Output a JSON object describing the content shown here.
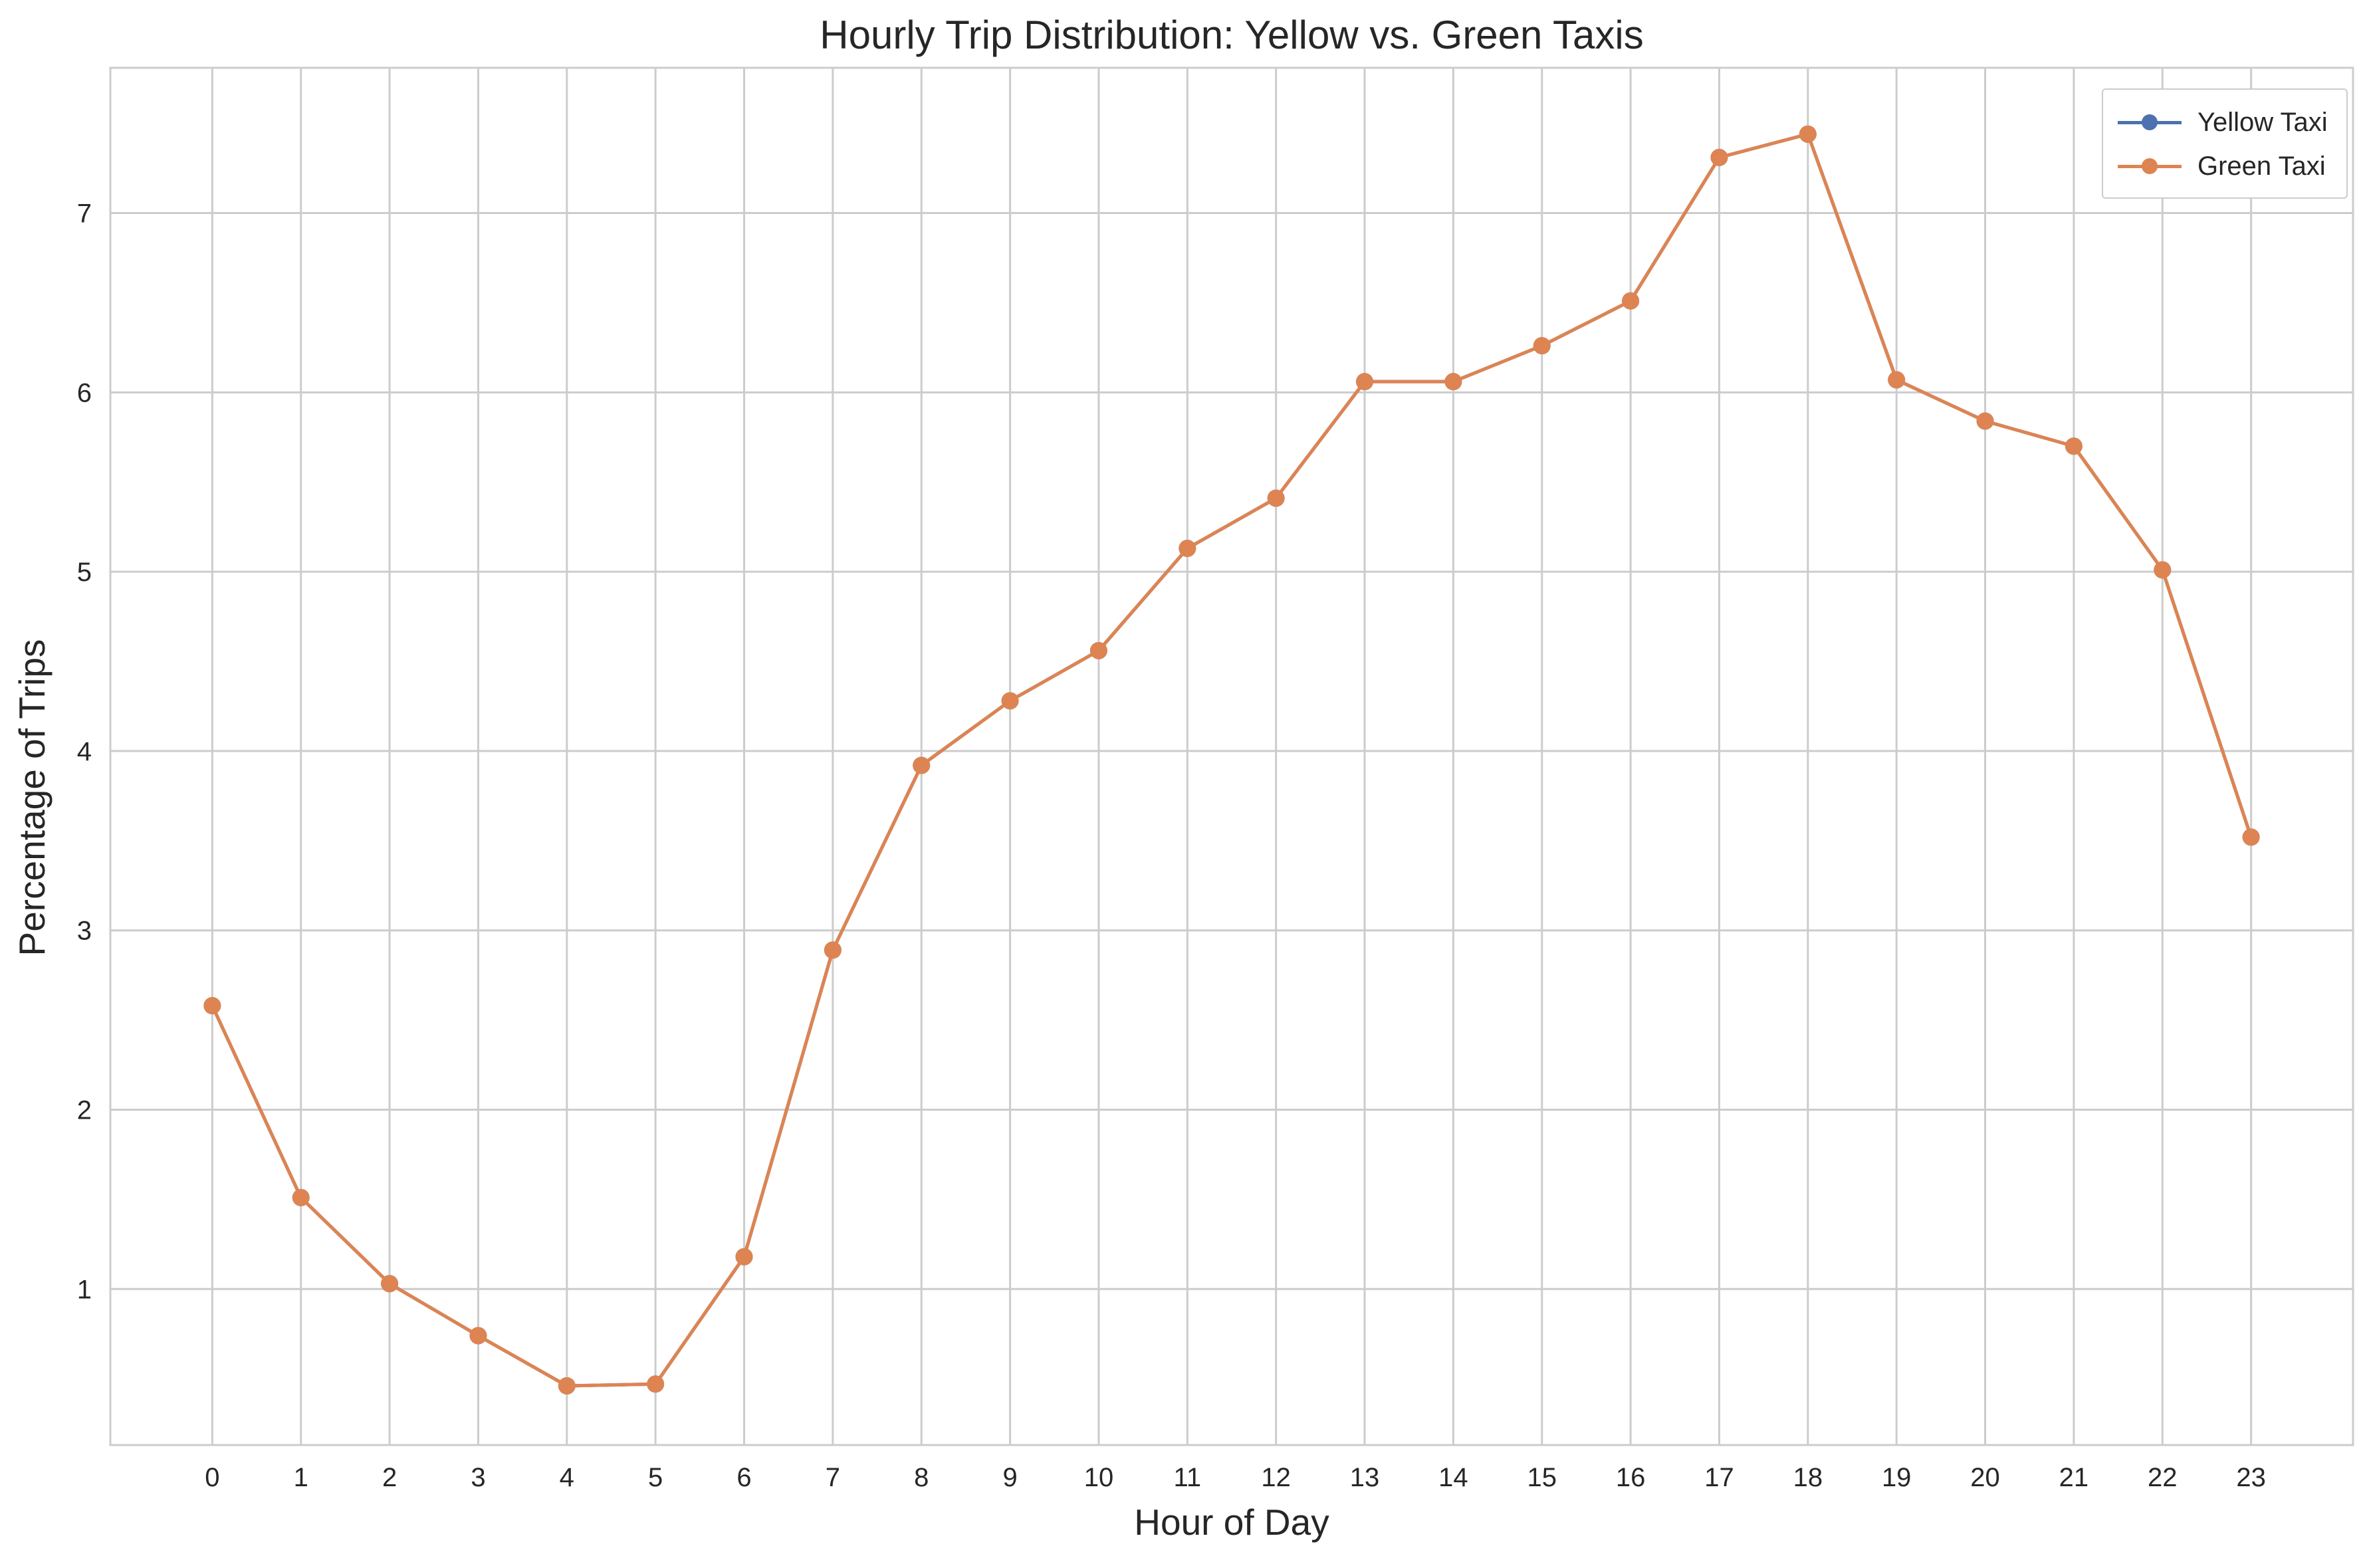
{
  "chart_data": {
    "type": "line",
    "title": "Hourly Trip Distribution: Yellow vs. Green Taxis",
    "xlabel": "Hour of Day",
    "ylabel": "Percentage of Trips",
    "x": [
      0,
      1,
      2,
      3,
      4,
      5,
      6,
      7,
      8,
      9,
      10,
      11,
      12,
      13,
      14,
      15,
      16,
      17,
      18,
      19,
      20,
      21,
      22,
      23
    ],
    "xticks": [
      "0",
      "1",
      "2",
      "3",
      "4",
      "5",
      "6",
      "7",
      "8",
      "9",
      "10",
      "11",
      "12",
      "13",
      "14",
      "15",
      "16",
      "17",
      "18",
      "19",
      "20",
      "21",
      "22",
      "23"
    ],
    "yticks": [
      "1",
      "2",
      "3",
      "4",
      "5",
      "6",
      "7"
    ],
    "xlim": [
      -1.15,
      24.15
    ],
    "ylim": [
      0.13,
      7.81
    ],
    "grid": true,
    "legend_position": "top-right",
    "series": [
      {
        "name": "Yellow Taxi",
        "color": "#4c72b0",
        "marker": "circle",
        "values": [
          2.58,
          1.51,
          1.03,
          0.74,
          0.46,
          0.47,
          1.18,
          2.89,
          3.92,
          4.28,
          4.56,
          5.13,
          5.41,
          6.06,
          6.06,
          6.26,
          6.51,
          7.31,
          7.44,
          6.07,
          5.84,
          5.7,
          5.01,
          3.52
        ]
      },
      {
        "name": "Green Taxi",
        "color": "#dd8452",
        "marker": "circle",
        "values": [
          2.58,
          1.51,
          1.03,
          0.74,
          0.46,
          0.47,
          1.18,
          2.89,
          3.92,
          4.28,
          4.56,
          5.13,
          5.41,
          6.06,
          6.06,
          6.26,
          6.51,
          7.31,
          7.44,
          6.07,
          5.84,
          5.7,
          5.01,
          3.52
        ]
      }
    ]
  }
}
